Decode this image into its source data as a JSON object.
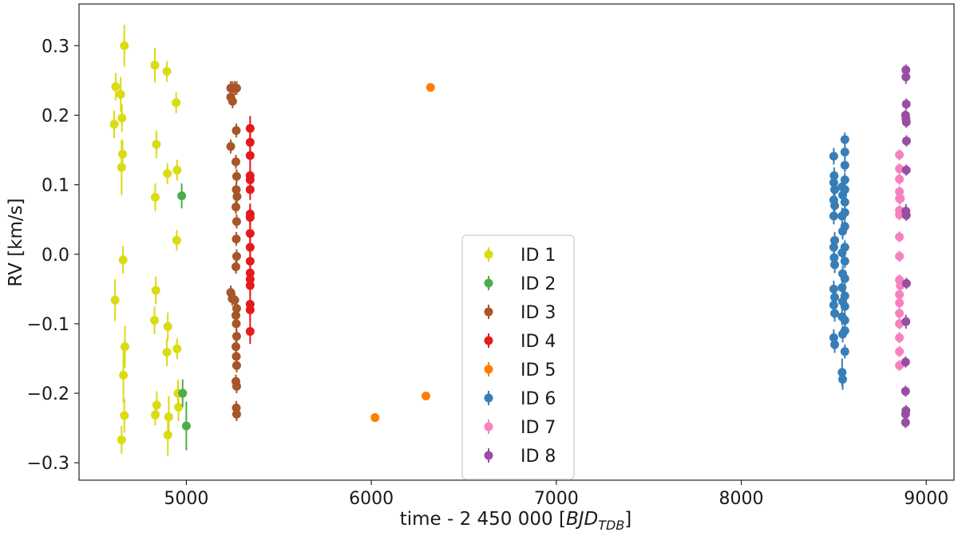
{
  "chart_data": {
    "type": "scatter",
    "xlabel": "time - 2 450 000 [BJD_TDB]",
    "xlabel_main": "time - 2 450 000 [",
    "xlabel_italic": "BJD",
    "xlabel_sub": "TDB",
    "xlabel_end": "]",
    "ylabel": "RV [km/s]",
    "xlim": [
      4420,
      9150
    ],
    "ylim": [
      -0.325,
      0.36
    ],
    "xticks": [
      5000,
      6000,
      7000,
      8000,
      9000
    ],
    "yticks": [
      -0.3,
      -0.2,
      -0.1,
      0.0,
      0.1,
      0.2,
      0.3
    ],
    "grid": false,
    "legend_position": "lower-center",
    "series": [
      {
        "name": "ID 1",
        "color": "#dbdb12",
        "points": [
          {
            "x": 4610,
            "y": 0.187,
            "err": 0.02
          },
          {
            "x": 4618,
            "y": 0.241,
            "err": 0.02
          },
          {
            "x": 4615,
            "y": -0.066,
            "err": 0.03
          },
          {
            "x": 4645,
            "y": 0.23,
            "err": 0.025
          },
          {
            "x": 4650,
            "y": 0.125,
            "err": 0.04
          },
          {
            "x": 4652,
            "y": 0.196,
            "err": 0.02
          },
          {
            "x": 4655,
            "y": 0.144,
            "err": 0.02
          },
          {
            "x": 4658,
            "y": -0.008,
            "err": 0.02
          },
          {
            "x": 4650,
            "y": -0.267,
            "err": 0.02
          },
          {
            "x": 4660,
            "y": -0.174,
            "err": 0.04
          },
          {
            "x": 4665,
            "y": 0.3,
            "err": 0.03
          },
          {
            "x": 4668,
            "y": -0.133,
            "err": 0.03
          },
          {
            "x": 4665,
            "y": -0.232,
            "err": 0.025
          },
          {
            "x": 4830,
            "y": 0.272,
            "err": 0.025
          },
          {
            "x": 4838,
            "y": 0.158,
            "err": 0.02
          },
          {
            "x": 4832,
            "y": 0.082,
            "err": 0.02
          },
          {
            "x": 4835,
            "y": -0.052,
            "err": 0.02
          },
          {
            "x": 4828,
            "y": -0.095,
            "err": 0.02
          },
          {
            "x": 4840,
            "y": -0.217,
            "err": 0.02
          },
          {
            "x": 4832,
            "y": -0.231,
            "err": 0.015
          },
          {
            "x": 4895,
            "y": 0.263,
            "err": 0.015
          },
          {
            "x": 4898,
            "y": 0.116,
            "err": 0.015
          },
          {
            "x": 4900,
            "y": -0.104,
            "err": 0.02
          },
          {
            "x": 4895,
            "y": -0.141,
            "err": 0.02
          },
          {
            "x": 4905,
            "y": -0.234,
            "err": 0.03
          },
          {
            "x": 4900,
            "y": -0.26,
            "err": 0.03
          },
          {
            "x": 4945,
            "y": 0.218,
            "err": 0.015
          },
          {
            "x": 4950,
            "y": 0.121,
            "err": 0.015
          },
          {
            "x": 4948,
            "y": 0.02,
            "err": 0.015
          },
          {
            "x": 4950,
            "y": -0.136,
            "err": 0.015
          },
          {
            "x": 4955,
            "y": -0.2,
            "err": 0.02
          },
          {
            "x": 4958,
            "y": -0.22,
            "err": 0.02
          }
        ]
      },
      {
        "name": "ID 2",
        "color": "#4aae4a",
        "points": [
          {
            "x": 4975,
            "y": 0.084,
            "err": 0.018
          },
          {
            "x": 4980,
            "y": -0.2,
            "err": 0.02
          },
          {
            "x": 5000,
            "y": -0.247,
            "err": 0.035
          }
        ]
      },
      {
        "name": "ID 3",
        "color": "#a65628",
        "points": [
          {
            "x": 5240,
            "y": 0.239,
            "err": 0.01
          },
          {
            "x": 5250,
            "y": 0.239,
            "err": 0.01
          },
          {
            "x": 5262,
            "y": 0.239,
            "err": 0.01
          },
          {
            "x": 5272,
            "y": 0.239,
            "err": 0.01
          },
          {
            "x": 5240,
            "y": 0.226,
            "err": 0.01
          },
          {
            "x": 5250,
            "y": 0.22,
            "err": 0.01
          },
          {
            "x": 5270,
            "y": 0.178,
            "err": 0.01
          },
          {
            "x": 5240,
            "y": 0.155,
            "err": 0.01
          },
          {
            "x": 5268,
            "y": 0.133,
            "err": 0.01
          },
          {
            "x": 5272,
            "y": 0.112,
            "err": 0.01
          },
          {
            "x": 5270,
            "y": 0.093,
            "err": 0.01
          },
          {
            "x": 5274,
            "y": 0.083,
            "err": 0.01
          },
          {
            "x": 5268,
            "y": 0.068,
            "err": 0.01
          },
          {
            "x": 5272,
            "y": 0.047,
            "err": 0.01
          },
          {
            "x": 5270,
            "y": 0.022,
            "err": 0.01
          },
          {
            "x": 5272,
            "y": -0.003,
            "err": 0.01
          },
          {
            "x": 5268,
            "y": -0.018,
            "err": 0.01
          },
          {
            "x": 5240,
            "y": -0.055,
            "err": 0.01
          },
          {
            "x": 5248,
            "y": -0.064,
            "err": 0.01
          },
          {
            "x": 5262,
            "y": -0.066,
            "err": 0.01
          },
          {
            "x": 5272,
            "y": -0.078,
            "err": 0.01
          },
          {
            "x": 5268,
            "y": -0.088,
            "err": 0.01
          },
          {
            "x": 5270,
            "y": -0.1,
            "err": 0.01
          },
          {
            "x": 5272,
            "y": -0.118,
            "err": 0.01
          },
          {
            "x": 5268,
            "y": -0.133,
            "err": 0.01
          },
          {
            "x": 5270,
            "y": -0.147,
            "err": 0.01
          },
          {
            "x": 5272,
            "y": -0.16,
            "err": 0.01
          },
          {
            "x": 5268,
            "y": -0.183,
            "err": 0.01
          },
          {
            "x": 5272,
            "y": -0.19,
            "err": 0.01
          },
          {
            "x": 5270,
            "y": -0.221,
            "err": 0.01
          },
          {
            "x": 5272,
            "y": -0.23,
            "err": 0.01
          }
        ]
      },
      {
        "name": "ID 4",
        "color": "#e41a1c",
        "points": [
          {
            "x": 5345,
            "y": 0.181,
            "err": 0.018
          },
          {
            "x": 5345,
            "y": 0.161,
            "err": 0.015
          },
          {
            "x": 5345,
            "y": 0.142,
            "err": 0.015
          },
          {
            "x": 5345,
            "y": 0.113,
            "err": 0.015
          },
          {
            "x": 5345,
            "y": 0.107,
            "err": 0.015
          },
          {
            "x": 5345,
            "y": 0.093,
            "err": 0.015
          },
          {
            "x": 5345,
            "y": 0.058,
            "err": 0.015
          },
          {
            "x": 5345,
            "y": 0.053,
            "err": 0.015
          },
          {
            "x": 5345,
            "y": 0.03,
            "err": 0.015
          },
          {
            "x": 5345,
            "y": 0.01,
            "err": 0.015
          },
          {
            "x": 5345,
            "y": -0.01,
            "err": 0.015
          },
          {
            "x": 5345,
            "y": -0.027,
            "err": 0.015
          },
          {
            "x": 5345,
            "y": -0.036,
            "err": 0.015
          },
          {
            "x": 5345,
            "y": -0.045,
            "err": 0.015
          },
          {
            "x": 5345,
            "y": -0.072,
            "err": 0.015
          },
          {
            "x": 5345,
            "y": -0.08,
            "err": 0.015
          },
          {
            "x": 5345,
            "y": -0.111,
            "err": 0.018
          }
        ]
      },
      {
        "name": "ID 5",
        "color": "#ff7f00",
        "points": [
          {
            "x": 6020,
            "y": -0.235,
            "err": 0.004
          },
          {
            "x": 6295,
            "y": -0.204,
            "err": 0.004
          },
          {
            "x": 6320,
            "y": 0.24,
            "err": 0.004
          }
        ]
      },
      {
        "name": "ID 6",
        "color": "#377eb8",
        "points": [
          {
            "x": 8500,
            "y": 0.141,
            "err": 0.012
          },
          {
            "x": 8502,
            "y": 0.113,
            "err": 0.012
          },
          {
            "x": 8500,
            "y": 0.103,
            "err": 0.012
          },
          {
            "x": 8505,
            "y": 0.093,
            "err": 0.012
          },
          {
            "x": 8500,
            "y": 0.078,
            "err": 0.012
          },
          {
            "x": 8505,
            "y": 0.07,
            "err": 0.012
          },
          {
            "x": 8500,
            "y": 0.055,
            "err": 0.012
          },
          {
            "x": 8505,
            "y": 0.02,
            "err": 0.012
          },
          {
            "x": 8500,
            "y": 0.01,
            "err": 0.012
          },
          {
            "x": 8502,
            "y": -0.005,
            "err": 0.012
          },
          {
            "x": 8505,
            "y": -0.015,
            "err": 0.012
          },
          {
            "x": 8500,
            "y": -0.05,
            "err": 0.012
          },
          {
            "x": 8505,
            "y": -0.062,
            "err": 0.012
          },
          {
            "x": 8500,
            "y": -0.073,
            "err": 0.012
          },
          {
            "x": 8505,
            "y": -0.085,
            "err": 0.012
          },
          {
            "x": 8500,
            "y": -0.12,
            "err": 0.012
          },
          {
            "x": 8505,
            "y": -0.13,
            "err": 0.012
          },
          {
            "x": 8545,
            "y": 0.097,
            "err": 0.012
          },
          {
            "x": 8548,
            "y": 0.085,
            "err": 0.012
          },
          {
            "x": 8545,
            "y": 0.055,
            "err": 0.012
          },
          {
            "x": 8548,
            "y": 0.033,
            "err": 0.012
          },
          {
            "x": 8545,
            "y": 0.002,
            "err": 0.012
          },
          {
            "x": 8548,
            "y": -0.028,
            "err": 0.012
          },
          {
            "x": 8545,
            "y": -0.048,
            "err": 0.012
          },
          {
            "x": 8548,
            "y": -0.068,
            "err": 0.012
          },
          {
            "x": 8545,
            "y": -0.09,
            "err": 0.012
          },
          {
            "x": 8548,
            "y": -0.115,
            "err": 0.012
          },
          {
            "x": 8545,
            "y": -0.17,
            "err": 0.02
          },
          {
            "x": 8548,
            "y": -0.18,
            "err": 0.015
          },
          {
            "x": 8560,
            "y": 0.165,
            "err": 0.01
          },
          {
            "x": 8560,
            "y": 0.147,
            "err": 0.01
          },
          {
            "x": 8560,
            "y": 0.128,
            "err": 0.01
          },
          {
            "x": 8560,
            "y": 0.107,
            "err": 0.01
          },
          {
            "x": 8560,
            "y": 0.093,
            "err": 0.01
          },
          {
            "x": 8560,
            "y": 0.075,
            "err": 0.01
          },
          {
            "x": 8560,
            "y": 0.06,
            "err": 0.01
          },
          {
            "x": 8560,
            "y": 0.04,
            "err": 0.01
          },
          {
            "x": 8560,
            "y": 0.01,
            "err": 0.01
          },
          {
            "x": 8560,
            "y": -0.01,
            "err": 0.01
          },
          {
            "x": 8560,
            "y": -0.035,
            "err": 0.01
          },
          {
            "x": 8560,
            "y": -0.06,
            "err": 0.01
          },
          {
            "x": 8560,
            "y": -0.075,
            "err": 0.01
          },
          {
            "x": 8560,
            "y": -0.095,
            "err": 0.01
          },
          {
            "x": 8560,
            "y": -0.11,
            "err": 0.01
          },
          {
            "x": 8560,
            "y": -0.14,
            "err": 0.01
          }
        ]
      },
      {
        "name": "ID 7",
        "color": "#f781bf",
        "points": [
          {
            "x": 8855,
            "y": 0.143,
            "err": 0.008
          },
          {
            "x": 8855,
            "y": 0.123,
            "err": 0.008
          },
          {
            "x": 8855,
            "y": 0.108,
            "err": 0.008
          },
          {
            "x": 8855,
            "y": 0.09,
            "err": 0.008
          },
          {
            "x": 8855,
            "y": 0.08,
            "err": 0.008
          },
          {
            "x": 8855,
            "y": 0.063,
            "err": 0.008
          },
          {
            "x": 8855,
            "y": 0.057,
            "err": 0.008
          },
          {
            "x": 8855,
            "y": 0.025,
            "err": 0.008
          },
          {
            "x": 8855,
            "y": -0.003,
            "err": 0.008
          },
          {
            "x": 8855,
            "y": -0.037,
            "err": 0.008
          },
          {
            "x": 8855,
            "y": -0.058,
            "err": 0.008
          },
          {
            "x": 8855,
            "y": -0.07,
            "err": 0.008
          },
          {
            "x": 8855,
            "y": -0.085,
            "err": 0.008
          },
          {
            "x": 8855,
            "y": -0.1,
            "err": 0.008
          },
          {
            "x": 8855,
            "y": -0.12,
            "err": 0.008
          },
          {
            "x": 8855,
            "y": -0.14,
            "err": 0.008
          },
          {
            "x": 8855,
            "y": -0.16,
            "err": 0.008
          },
          {
            "x": 8860,
            "y": 0.08,
            "err": 0.008
          },
          {
            "x": 8860,
            "y": -0.045,
            "err": 0.008
          }
        ]
      },
      {
        "name": "ID 8",
        "color": "#984ea3",
        "points": [
          {
            "x": 8890,
            "y": 0.265,
            "err": 0.008
          },
          {
            "x": 8890,
            "y": 0.255,
            "err": 0.01
          },
          {
            "x": 8892,
            "y": 0.216,
            "err": 0.008
          },
          {
            "x": 8888,
            "y": 0.2,
            "err": 0.008
          },
          {
            "x": 8890,
            "y": 0.195,
            "err": 0.008
          },
          {
            "x": 8892,
            "y": 0.19,
            "err": 0.008
          },
          {
            "x": 8893,
            "y": 0.163,
            "err": 0.008
          },
          {
            "x": 8892,
            "y": 0.121,
            "err": 0.008
          },
          {
            "x": 8890,
            "y": 0.062,
            "err": 0.01
          },
          {
            "x": 8892,
            "y": 0.056,
            "err": 0.008
          },
          {
            "x": 8893,
            "y": -0.042,
            "err": 0.008
          },
          {
            "x": 8890,
            "y": -0.097,
            "err": 0.01
          },
          {
            "x": 8888,
            "y": -0.155,
            "err": 0.008
          },
          {
            "x": 8888,
            "y": -0.197,
            "err": 0.008
          },
          {
            "x": 8890,
            "y": -0.225,
            "err": 0.008
          },
          {
            "x": 8888,
            "y": -0.23,
            "err": 0.008
          },
          {
            "x": 8888,
            "y": -0.242,
            "err": 0.008
          }
        ]
      }
    ]
  }
}
